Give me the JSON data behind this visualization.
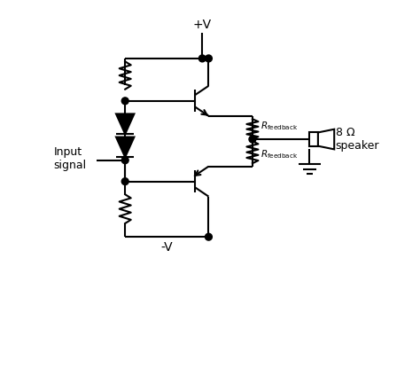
{
  "bg_color": "#ffffff",
  "line_color": "#000000",
  "line_width": 1.5,
  "figsize": [
    4.74,
    4.41
  ],
  "dpi": 100,
  "vplus_label": "+V",
  "vminus_label": "-V",
  "input_label": "Input\nsignal",
  "speaker_label": "8 Ω\nspeaker",
  "omega": "8 Ω",
  "speaker_word": "speaker"
}
